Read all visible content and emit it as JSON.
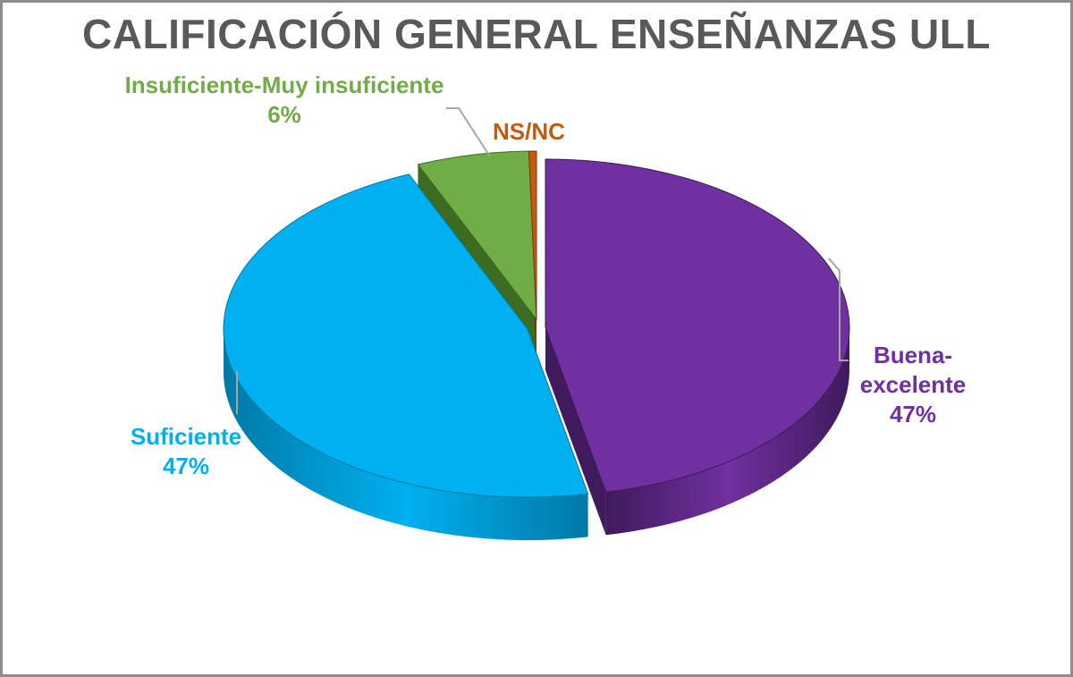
{
  "chart_data": {
    "type": "pie",
    "title": "CALIFICACIÓN GENERAL ENSEÑANZAS ULL",
    "slices": [
      {
        "name": "Buena-\nexcelente",
        "label_lines": [
          "Buena-",
          "excelente"
        ],
        "value": 47,
        "value_label": "47%",
        "color": "#7030A0",
        "side": "#3F1A5C"
      },
      {
        "name": "Suficiente",
        "label_lines": [
          "Suficiente"
        ],
        "value": 47,
        "value_label": "47%",
        "color": "#00B0F0",
        "side": "#0079A6"
      },
      {
        "name": "Insuficiente-Muy insuficiente",
        "label_lines": [
          "Insuficiente-Muy insuficiente"
        ],
        "value": 6,
        "value_label": "6%",
        "color": "#70AD47",
        "side": "#3D6B1F"
      },
      {
        "name": "NS/NC",
        "label_lines": [
          "NS/NC"
        ],
        "value": 0.4,
        "value_label": "",
        "color": "#C55A11",
        "side": "#7A3609"
      }
    ],
    "label_colors": {
      "Buena-excelente": "#7030A0",
      "Suficiente": "#00B0F0",
      "Insuficiente-Muy insuficiente": "#70AD47",
      "NS/NC": "#C55A11"
    },
    "legend": "none",
    "style": "3d-exploded"
  }
}
